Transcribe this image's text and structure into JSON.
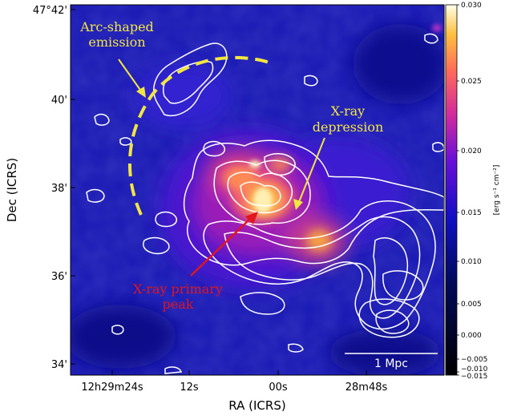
{
  "axes": {
    "x_title": "RA (ICRS)",
    "y_title": "Dec (ICRS)",
    "x_ticks": [
      "12h29m24s",
      "12s",
      "00s",
      "28m48s"
    ],
    "y_ticks": [
      "47°42'",
      "40'",
      "38'",
      "36'",
      "34'"
    ]
  },
  "colorbar": {
    "unit_label": "[erg s⁻¹ cm⁻²]",
    "ticks": [
      "0.030",
      "0.025",
      "0.020",
      "0.015",
      "0.010",
      "0.005",
      "0.000",
      "−0.005",
      "−0.010",
      "−0.015"
    ]
  },
  "annotations": {
    "arc_line1": "Arc-shaped",
    "arc_line2": "emission",
    "depression_line1": "X-ray",
    "depression_line2": "depression",
    "peak_line1": "X-ray primary",
    "peak_line2": "peak"
  },
  "scale_bar": {
    "label": "1 Mpc"
  },
  "colors": {
    "annotation_yellow": "#f2e640",
    "annotation_red": "#e0161e",
    "contour": "#ffffff",
    "background_blue": "#1a1ab8"
  }
}
